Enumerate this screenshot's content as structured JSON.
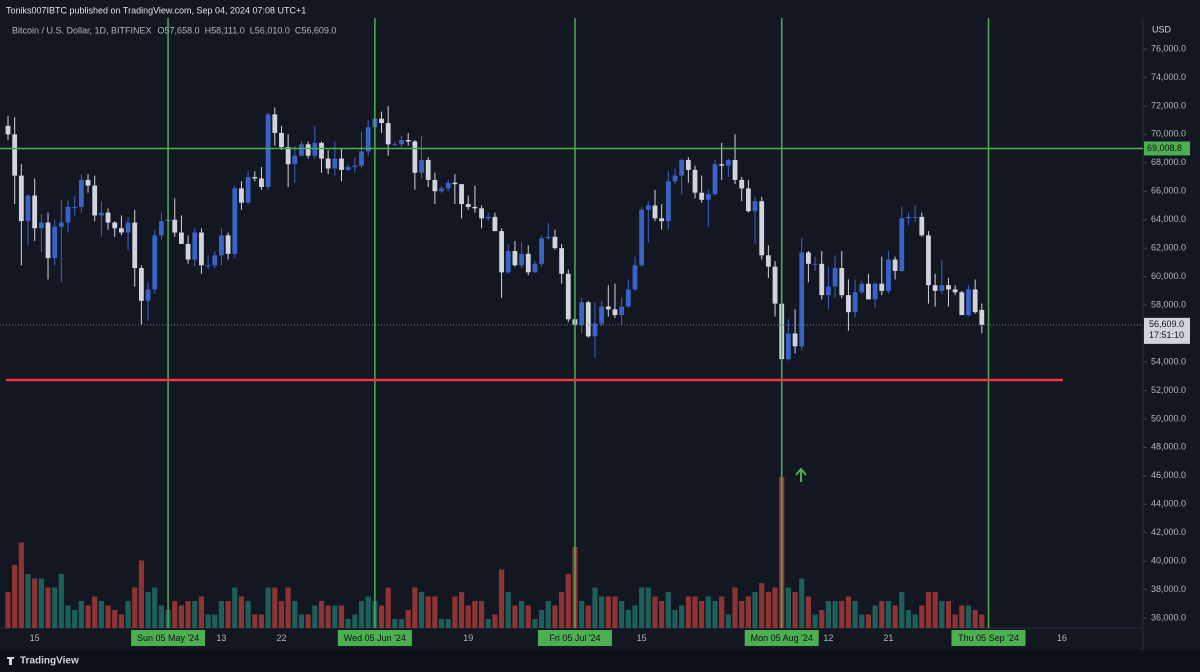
{
  "chart_data": {
    "type": "candlestick",
    "published": "Toniks007IBTC published on TradingView.com, Sep 04, 2024 07:08 UTC+1",
    "symbol": "Bitcoin / U.S. Dollar, 1D, BITFINEX",
    "ohlc_labels": [
      "O57,658.0",
      "H58,111.0",
      "L56,010.0",
      "C56,609.0"
    ],
    "currency": "USD",
    "footer": "TradingView",
    "last_price_label": "56,609.0",
    "countdown": "17:51:10",
    "up_color": "#3a63c8",
    "down_color": "#d1d4dc",
    "volume_up_color": "#1d5f5a",
    "volume_down_color": "#8e3434",
    "marker_color": "#4caf50",
    "grid": false,
    "ylim": [
      35300,
      78180
    ],
    "yticks": [
      {
        "value": 36000,
        "label": "36,000.0"
      },
      {
        "value": 38000,
        "label": "38,000.0"
      },
      {
        "value": 40000,
        "label": "40,000.0"
      },
      {
        "value": 42000,
        "label": "42,000.0"
      },
      {
        "value": 44000,
        "label": "44,000.0"
      },
      {
        "value": 46000,
        "label": "46,000.0"
      },
      {
        "value": 48000,
        "label": "48,000.0"
      },
      {
        "value": 50000,
        "label": "50,000.0"
      },
      {
        "value": 52000,
        "label": "52,000.0"
      },
      {
        "value": 54000,
        "label": "54,000.0"
      },
      {
        "value": 56000,
        "label": "56,000.0"
      },
      {
        "value": 58000,
        "label": "58,000.0"
      },
      {
        "value": 60000,
        "label": "60,000.0"
      },
      {
        "value": 62000,
        "label": "62,000.0"
      },
      {
        "value": 64000,
        "label": "64,000.0"
      },
      {
        "value": 66000,
        "label": "66,000.0"
      },
      {
        "value": 68000,
        "label": "68,000.0"
      },
      {
        "value": 70000,
        "label": "70,000.0"
      },
      {
        "value": 72000,
        "label": "72,000.0"
      },
      {
        "value": 74000,
        "label": "74,000.0"
      },
      {
        "value": 76000,
        "label": "76,000.0"
      }
    ],
    "levels": [
      {
        "value": 69008.8,
        "label": "69,008.8",
        "color": "#4caf50"
      },
      {
        "value": 52730,
        "color": "#f23645"
      }
    ],
    "categories": [
      null,
      null,
      null,
      null,
      "15",
      null,
      null,
      null,
      null,
      null,
      null,
      null,
      null,
      null,
      null,
      null,
      null,
      null,
      null,
      null,
      null,
      null,
      null,
      null,
      "Sun 05 May '24",
      null,
      null,
      null,
      null,
      null,
      null,
      null,
      "13",
      null,
      null,
      null,
      null,
      null,
      null,
      null,
      null,
      "22",
      null,
      null,
      null,
      null,
      null,
      null,
      null,
      null,
      null,
      null,
      null,
      null,
      null,
      "Wed 05 Jun '24",
      null,
      null,
      null,
      null,
      null,
      null,
      null,
      null,
      null,
      null,
      null,
      null,
      null,
      "19",
      null,
      null,
      null,
      null,
      null,
      null,
      null,
      null,
      null,
      null,
      null,
      null,
      null,
      null,
      null,
      "Fri 05 Jul '24",
      null,
      null,
      null,
      null,
      null,
      null,
      null,
      null,
      null,
      "15",
      null,
      null,
      null,
      null,
      null,
      null,
      null,
      null,
      null,
      null,
      null,
      null,
      null,
      null,
      null,
      null,
      null,
      null,
      null,
      null,
      "Mon 05 Aug '24",
      null,
      null,
      null,
      null,
      null,
      null,
      "12",
      null,
      null,
      null,
      null,
      null,
      null,
      null,
      null,
      "21",
      null,
      null,
      null,
      null,
      null,
      null,
      null,
      null,
      null,
      null,
      null,
      null,
      null,
      null,
      "Thu 05 Sep '24",
      null,
      null,
      null,
      null,
      null,
      null,
      null,
      null,
      null,
      null,
      "16"
    ],
    "open": [
      70600,
      70000,
      67100,
      63900,
      65700,
      63400,
      63800,
      61300,
      63500,
      63800,
      64900,
      64900,
      66800,
      66400,
      64300,
      64500,
      63800,
      63400,
      63100,
      63800,
      60600,
      58300,
      59100,
      62900,
      63900,
      64000,
      63100,
      62300,
      61200,
      63100,
      60800,
      60800,
      61500,
      62900,
      61600,
      66200,
      65200,
      67000,
      66900,
      66300,
      71400,
      70100,
      69100,
      67900,
      68500,
      69300,
      68500,
      69400,
      68300,
      67600,
      68300,
      67500,
      67700,
      67800,
      68800,
      70500,
      71100,
      70800,
      69300,
      69300,
      69600,
      69500,
      67300,
      68200,
      66800,
      66000,
      66200,
      66600,
      66500,
      65100,
      64900,
      64800,
      64100,
      64200,
      63200,
      60300,
      61800,
      60800,
      61600,
      60300,
      60900,
      62700,
      62800,
      62000,
      60200,
      57000,
      56600,
      58200,
      55800,
      56700,
      57900,
      57700,
      57300,
      57900,
      59100,
      60800,
      64700,
      65000,
      64100,
      63900,
      66700,
      67100,
      68200,
      67500,
      65900,
      65400,
      65800,
      67900,
      67800,
      68200,
      66800,
      66200,
      64600,
      65300,
      61500,
      60700,
      58100,
      54200,
      56000,
      55100,
      61700,
      60900,
      60900,
      58700,
      59300,
      60600,
      58700,
      57500,
      58900,
      59500,
      58400,
      59500,
      59000,
      61200,
      60400,
      64100,
      64200,
      64200,
      62900,
      59400,
      59000,
      59400,
      59100,
      58900,
      57300,
      59100,
      57658,
      null,
      null,
      null,
      null,
      null,
      null,
      null,
      null,
      null,
      null,
      null,
      null
    ],
    "high": [
      71300,
      71200,
      67900,
      65800,
      66900,
      64400,
      64500,
      64000,
      65400,
      65400,
      65700,
      67200,
      67200,
      67100,
      65300,
      64800,
      63900,
      64300,
      64200,
      64700,
      60800,
      59600,
      63300,
      64500,
      64400,
      65500,
      64300,
      62900,
      63400,
      63400,
      61500,
      61800,
      63400,
      63100,
      66400,
      66700,
      67400,
      67400,
      67700,
      71500,
      71900,
      70600,
      70000,
      69200,
      69500,
      69500,
      70600,
      69500,
      68900,
      69500,
      69000,
      67900,
      68400,
      70200,
      71000,
      71700,
      71600,
      72000,
      69500,
      69900,
      70100,
      69600,
      69900,
      68400,
      67300,
      66400,
      66800,
      67200,
      66500,
      65700,
      66400,
      65000,
      64500,
      64500,
      63400,
      62300,
      62500,
      62400,
      62200,
      61100,
      62900,
      63800,
      63300,
      62300,
      60500,
      57500,
      58500,
      58300,
      58200,
      58300,
      59400,
      59500,
      58500,
      59800,
      61400,
      64900,
      65300,
      66100,
      65100,
      67400,
      67600,
      68300,
      68400,
      67800,
      67100,
      66100,
      68200,
      69400,
      68300,
      70000,
      67000,
      66800,
      65600,
      65600,
      62200,
      61100,
      58300,
      57000,
      57700,
      62700,
      61800,
      61400,
      61800,
      60700,
      61500,
      61800,
      59800,
      59800,
      59700,
      60200,
      59600,
      61400,
      61800,
      61400,
      64900,
      64500,
      65000,
      64500,
      63200,
      60200,
      61200,
      59900,
      59400,
      59000,
      59400,
      59800,
      58111,
      null,
      null,
      null,
      null,
      null,
      null,
      null,
      null,
      null,
      null,
      null,
      null
    ],
    "low": [
      69600,
      65100,
      60800,
      62200,
      62500,
      61700,
      59800,
      60800,
      59600,
      63100,
      64300,
      64500,
      65900,
      63900,
      62800,
      63300,
      62800,
      62900,
      61800,
      59300,
      56600,
      56900,
      58800,
      62600,
      62800,
      62800,
      62300,
      60900,
      60700,
      60200,
      60500,
      60600,
      60800,
      61200,
      61300,
      64700,
      65100,
      66700,
      66100,
      66100,
      69200,
      68900,
      66300,
      66600,
      68500,
      68300,
      68300,
      67300,
      67200,
      67100,
      66700,
      67400,
      67300,
      67600,
      68500,
      70200,
      70100,
      68500,
      69200,
      69100,
      69200,
      66100,
      66900,
      66300,
      65100,
      65900,
      66000,
      65100,
      64100,
      64700,
      64500,
      63400,
      63900,
      63200,
      58500,
      60200,
      60700,
      60600,
      60100,
      60300,
      60700,
      62600,
      61900,
      59500,
      56800,
      53500,
      56000,
      55700,
      54300,
      56500,
      57200,
      57100,
      56600,
      57800,
      59000,
      60700,
      62400,
      63900,
      63300,
      63300,
      66500,
      65800,
      66600,
      65500,
      65200,
      63500,
      65700,
      66800,
      67000,
      66500,
      65300,
      64500,
      62300,
      61200,
      59900,
      57200,
      54000,
      54100,
      54600,
      54800,
      59600,
      60400,
      58400,
      57700,
      58500,
      58500,
      56200,
      57100,
      58800,
      58400,
      57800,
      58700,
      58800,
      59800,
      60300,
      63600,
      63800,
      62800,
      58100,
      57900,
      58800,
      57900,
      58700,
      57300,
      57200,
      57400,
      56010,
      null,
      null,
      null,
      null,
      null,
      null,
      null,
      null,
      null,
      null,
      null,
      null
    ],
    "close": [
      70000,
      67100,
      63900,
      65700,
      63400,
      63800,
      61300,
      63500,
      63800,
      64900,
      64900,
      66800,
      66400,
      64300,
      64500,
      63800,
      63400,
      63100,
      63800,
      60600,
      58300,
      59100,
      62900,
      63900,
      64000,
      63100,
      62300,
      61200,
      63100,
      60800,
      60800,
      61500,
      62900,
      61600,
      66200,
      65200,
      67000,
      66900,
      66300,
      71400,
      70100,
      69100,
      67900,
      68500,
      69300,
      68500,
      69400,
      68300,
      67600,
      68300,
      67500,
      67700,
      67800,
      68800,
      70500,
      71100,
      70800,
      69300,
      69300,
      69600,
      69500,
      67300,
      68200,
      66800,
      66000,
      66200,
      66600,
      66500,
      65100,
      64900,
      64800,
      64100,
      64200,
      63200,
      60300,
      61800,
      60800,
      61600,
      60300,
      60900,
      62700,
      62800,
      62000,
      60200,
      57000,
      56600,
      58200,
      55800,
      56700,
      57900,
      57700,
      57300,
      57900,
      59100,
      60800,
      64700,
      65000,
      64100,
      63900,
      66700,
      67100,
      68200,
      67500,
      65900,
      65400,
      65800,
      67900,
      67800,
      68200,
      66800,
      66200,
      64600,
      65300,
      61500,
      60700,
      58100,
      54200,
      56000,
      55100,
      61700,
      60900,
      60900,
      58700,
      59300,
      60600,
      58700,
      57500,
      58900,
      59500,
      58400,
      59500,
      59000,
      61200,
      60400,
      64100,
      64200,
      64200,
      62900,
      59400,
      59000,
      59400,
      59100,
      58900,
      57300,
      59100,
      57500,
      56609,
      null,
      null,
      null,
      null,
      null,
      null,
      null,
      null,
      null,
      null,
      null,
      null
    ],
    "volume": [
      40,
      70,
      95,
      60,
      55,
      55,
      45,
      45,
      60,
      25,
      20,
      30,
      25,
      35,
      30,
      25,
      20,
      15,
      30,
      45,
      75,
      40,
      45,
      25,
      20,
      30,
      25,
      30,
      30,
      35,
      15,
      15,
      30,
      30,
      45,
      35,
      30,
      15,
      15,
      45,
      45,
      30,
      45,
      30,
      15,
      15,
      25,
      30,
      25,
      25,
      25,
      10,
      15,
      30,
      35,
      30,
      25,
      45,
      10,
      10,
      20,
      45,
      40,
      35,
      35,
      10,
      10,
      35,
      40,
      25,
      30,
      30,
      10,
      15,
      65,
      40,
      25,
      30,
      25,
      10,
      20,
      30,
      25,
      40,
      60,
      90,
      30,
      25,
      45,
      35,
      35,
      35,
      30,
      20,
      25,
      45,
      45,
      35,
      30,
      40,
      20,
      25,
      35,
      35,
      30,
      35,
      30,
      35,
      15,
      45,
      30,
      35,
      40,
      50,
      40,
      45,
      168,
      45,
      40,
      55,
      35,
      15,
      20,
      30,
      30,
      30,
      35,
      30,
      15,
      15,
      25,
      30,
      30,
      25,
      40,
      20,
      15,
      25,
      40,
      40,
      30,
      30,
      15,
      25,
      25,
      20,
      15,
      null,
      null,
      null,
      null,
      null,
      null,
      null,
      null,
      null,
      null,
      null,
      null
    ]
  }
}
